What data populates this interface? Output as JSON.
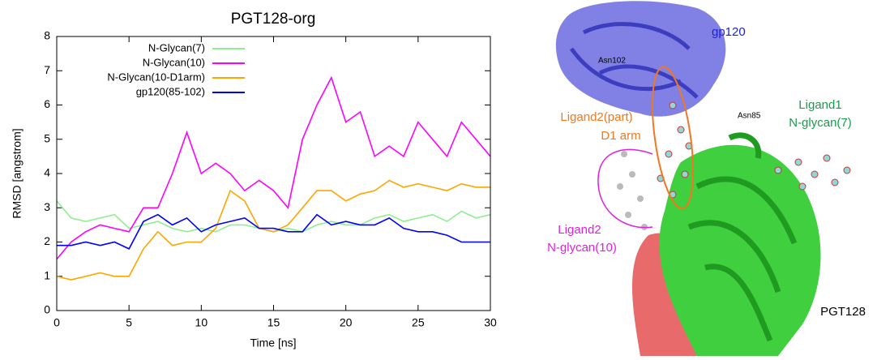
{
  "chart_data": {
    "type": "line",
    "title": "PGT128-org",
    "x_label": "Time [ns]",
    "y_label": "RMSD [angstrom]",
    "x": [
      0,
      1,
      2,
      3,
      4,
      5,
      6,
      7,
      8,
      9,
      10,
      11,
      12,
      13,
      14,
      15,
      16,
      17,
      18,
      19,
      20,
      21,
      22,
      23,
      24,
      25,
      26,
      27,
      28,
      29,
      30
    ],
    "series": [
      {
        "name": "N-Glycan(7)",
        "color": "#90ee90",
        "values": [
          3.2,
          2.7,
          2.6,
          2.7,
          2.8,
          2.4,
          2.5,
          2.6,
          2.4,
          2.3,
          2.4,
          2.3,
          2.5,
          2.5,
          2.4,
          2.3,
          2.4,
          2.3,
          2.5,
          2.6,
          2.5,
          2.5,
          2.7,
          2.8,
          2.6,
          2.7,
          2.8,
          2.6,
          2.9,
          2.7,
          2.8
        ]
      },
      {
        "name": "N-Glycan(10)",
        "color": "#ff00ff",
        "values": [
          1.5,
          2.0,
          2.3,
          2.5,
          2.4,
          2.3,
          3.0,
          3.0,
          4.0,
          5.2,
          4.0,
          4.3,
          4.0,
          3.5,
          3.8,
          3.5,
          3.0,
          5.0,
          6.0,
          6.8,
          5.5,
          5.8,
          4.5,
          4.8,
          4.5,
          5.5,
          5.0,
          4.5,
          5.5,
          5.0,
          4.5
        ]
      },
      {
        "name": "N-Glycan(10-D1arm)",
        "color": "#ffa500",
        "values": [
          1.0,
          0.9,
          1.0,
          1.1,
          1.0,
          1.0,
          1.8,
          2.3,
          1.9,
          2.0,
          2.0,
          2.4,
          3.5,
          3.2,
          2.4,
          2.3,
          2.5,
          3.0,
          3.5,
          3.5,
          3.2,
          3.4,
          3.5,
          3.8,
          3.6,
          3.7,
          3.6,
          3.5,
          3.7,
          3.6,
          3.6
        ]
      },
      {
        "name": "gp120(85-102)",
        "color": "#0000ff",
        "values": [
          1.9,
          1.9,
          2.0,
          1.9,
          2.0,
          1.8,
          2.6,
          2.8,
          2.5,
          2.7,
          2.3,
          2.5,
          2.6,
          2.7,
          2.4,
          2.4,
          2.3,
          2.3,
          2.8,
          2.5,
          2.6,
          2.5,
          2.5,
          2.7,
          2.4,
          2.3,
          2.3,
          2.2,
          2.0,
          2.0,
          2.0
        ]
      }
    ],
    "xlim": [
      0,
      30
    ],
    "xticks": [
      0,
      5,
      10,
      15,
      20,
      25,
      30
    ],
    "ylim": [
      0,
      8
    ],
    "yticks": [
      0,
      1,
      2,
      3,
      4,
      5,
      6,
      7,
      8
    ],
    "legend": "top-left"
  },
  "image_labels": {
    "gp120": "gp120",
    "asn102": "Asn102",
    "asn85": "Asn85",
    "ligand1": "Ligand1",
    "ligand1_glycan": "N-glycan(7)",
    "ligand2_part": "Ligand2(part)",
    "d1_arm": "D1 arm",
    "ligand2": "Ligand2",
    "ligand2_glycan": "N-glycan(10)",
    "pgt128": "PGT128"
  }
}
